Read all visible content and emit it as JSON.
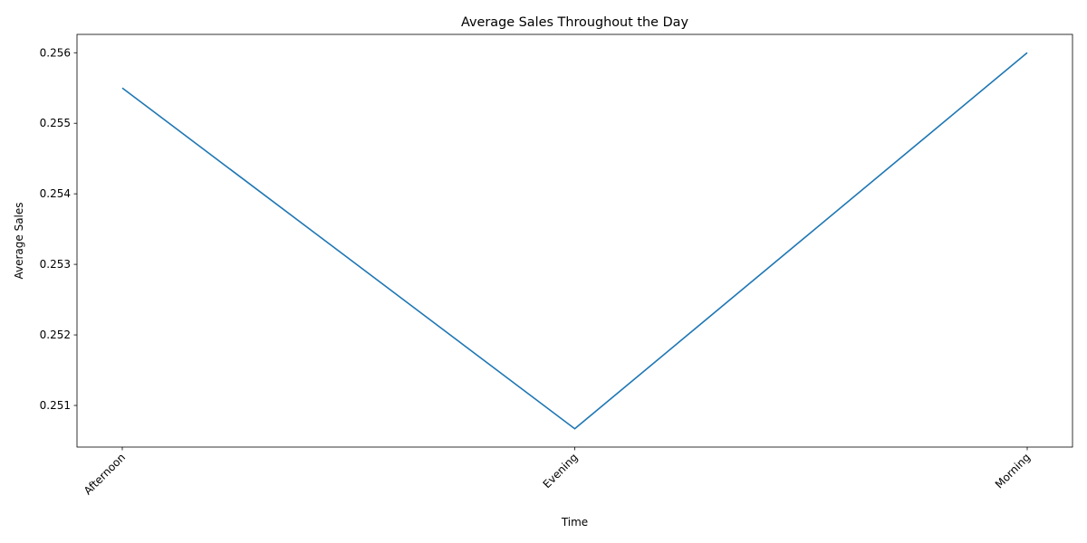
{
  "chart_data": {
    "type": "line",
    "title": "Average Sales Throughout the Day",
    "xlabel": "Time",
    "ylabel": "Average Sales",
    "categories": [
      "Afternoon",
      "Evening",
      "Morning"
    ],
    "series": [
      {
        "values": [
          0.2555,
          0.25067,
          0.256
        ]
      }
    ],
    "ylim": [
      0.25041,
      0.25626
    ],
    "yticks": [
      "0.251",
      "0.252",
      "0.253",
      "0.254",
      "0.255",
      "0.256"
    ],
    "grid": false,
    "line_color": "#1f77b4"
  }
}
